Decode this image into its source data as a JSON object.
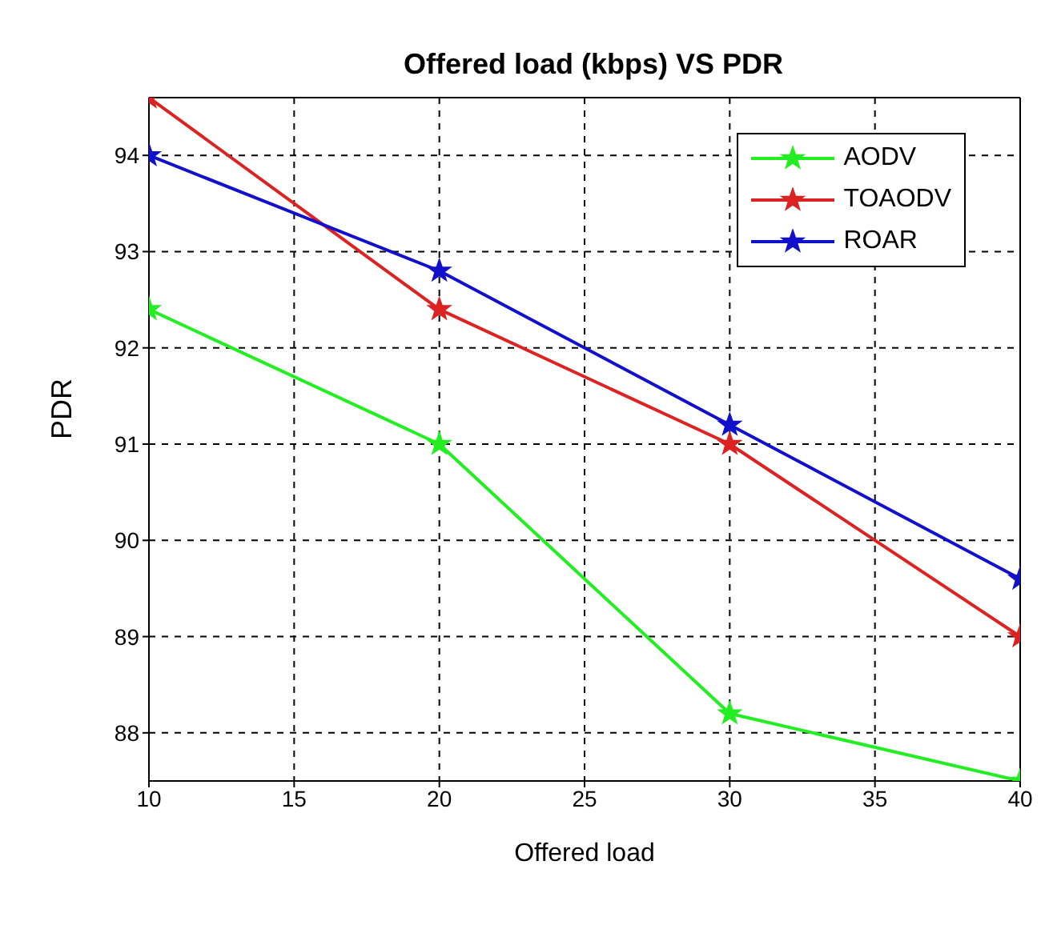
{
  "chart_data": {
    "type": "line",
    "title": "Offered load (kbps) VS PDR",
    "xlabel": "Offered load",
    "ylabel": "PDR",
    "x": [
      10,
      20,
      30,
      40
    ],
    "series": [
      {
        "name": "AODV",
        "color": "#22ee22",
        "values": [
          92.4,
          91,
          88.2,
          87.5
        ]
      },
      {
        "name": "TOAODV",
        "color": "#dd2222",
        "values": [
          94.6,
          92.4,
          91,
          89
        ]
      },
      {
        "name": "ROAR",
        "color": "#1111cc",
        "values": [
          94,
          92.8,
          91.2,
          89.6
        ]
      }
    ],
    "xlim": [
      10,
      40
    ],
    "xticks": [
      10,
      15,
      20,
      25,
      30,
      35,
      40
    ],
    "ylim": [
      87.5,
      94.6
    ],
    "yticks": [
      88,
      89,
      90,
      91,
      92,
      93,
      94
    ],
    "grid": true,
    "legend": "top right",
    "marker": "star",
    "line_style": "solid"
  }
}
